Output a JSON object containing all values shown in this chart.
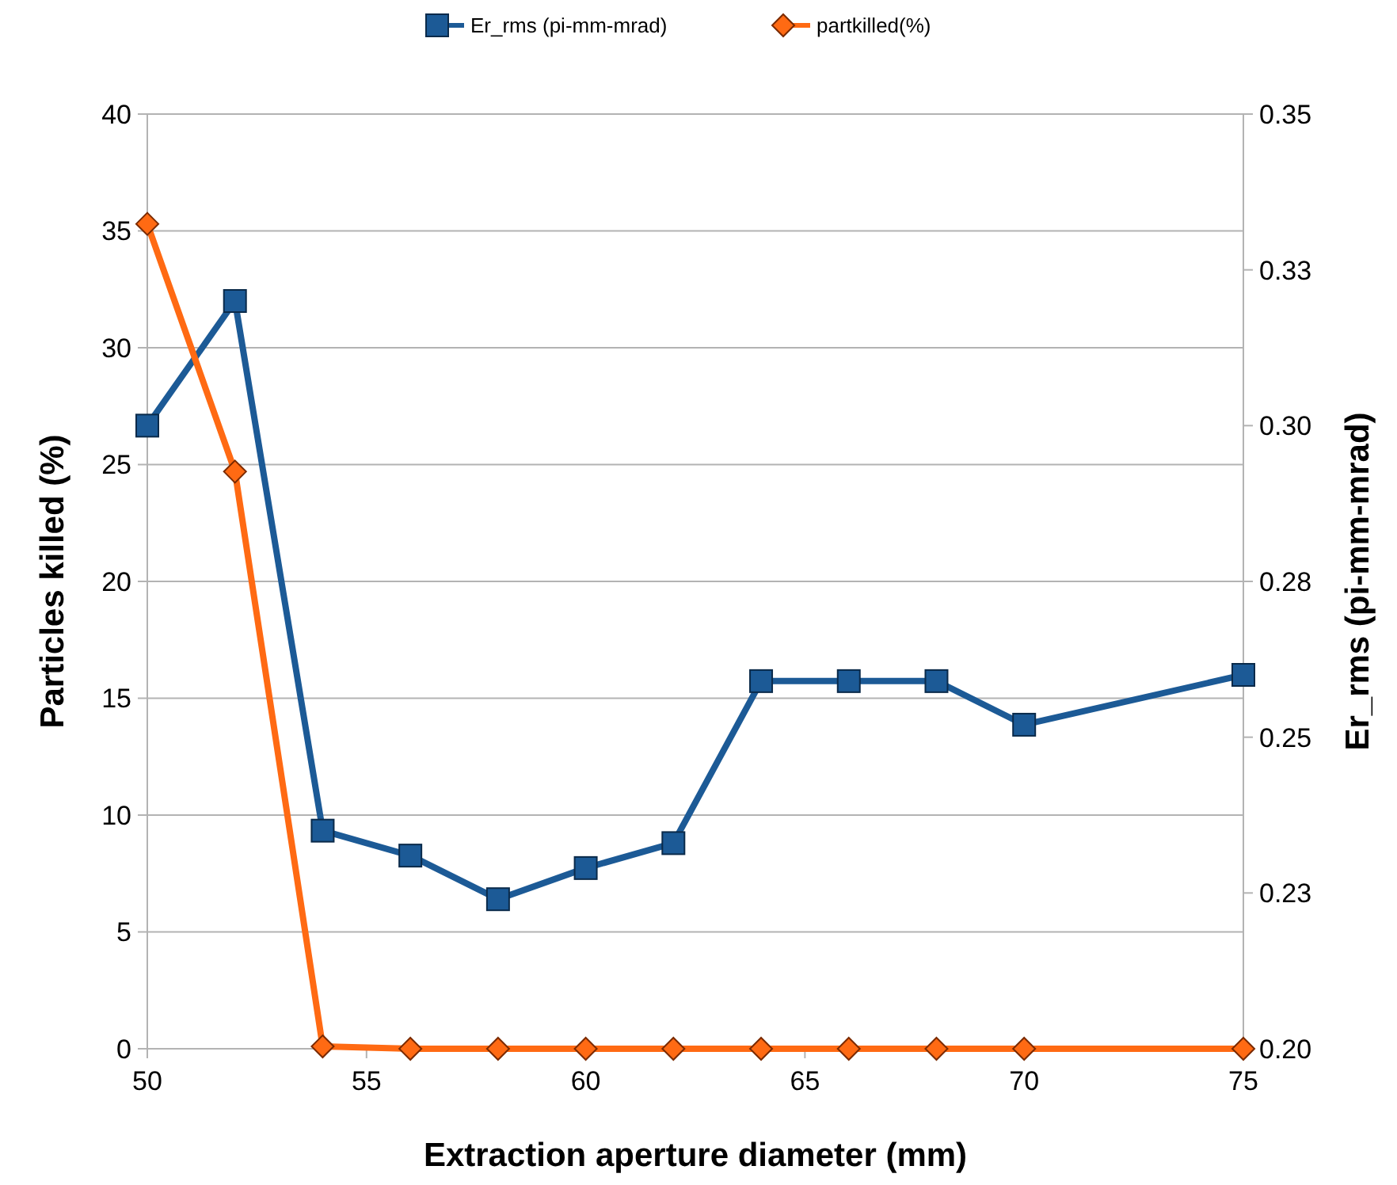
{
  "chart_data": {
    "type": "line",
    "xlabel": "Extraction aperture diameter (mm)",
    "ylabel": "Particles killed (%)",
    "y2label": "Er_rms (pi-mm-mrad)",
    "x": [
      50,
      52,
      54,
      56,
      58,
      60,
      62,
      64,
      66,
      68,
      70,
      75
    ],
    "series": [
      {
        "name": "Er_rms (pi-mm-mrad)",
        "color": "#1c5a96",
        "axis": "y2",
        "marker": "square",
        "values": [
          0.3,
          0.32,
          0.235,
          0.231,
          0.224,
          0.229,
          0.233,
          0.259,
          0.259,
          0.259,
          0.252,
          0.26
        ]
      },
      {
        "name": "partkilled(%)",
        "color": "#ff6a13",
        "marker": "diamond",
        "values": [
          35.3,
          24.7,
          0.1,
          0,
          0,
          0,
          0,
          0,
          0,
          0,
          0,
          0
        ]
      }
    ],
    "xlim": [
      50,
      75
    ],
    "xticks": [
      50,
      55,
      60,
      65,
      70,
      75
    ],
    "ylim": [
      0,
      40
    ],
    "yticks": [
      0,
      5,
      10,
      15,
      20,
      25,
      30,
      35,
      40
    ],
    "y2lim": [
      0.2,
      0.35
    ],
    "y2ticks": [
      {
        "value": 0.2,
        "label": "0.20"
      },
      {
        "value": 0.225,
        "label": "0.23"
      },
      {
        "value": 0.25,
        "label": "0.25"
      },
      {
        "value": 0.275,
        "label": "0.28"
      },
      {
        "value": 0.3,
        "label": "0.30"
      },
      {
        "value": 0.325,
        "label": "0.33"
      },
      {
        "value": 0.35,
        "label": "0.35"
      }
    ],
    "grid": "y",
    "legend": "top",
    "line_style": "solid"
  }
}
